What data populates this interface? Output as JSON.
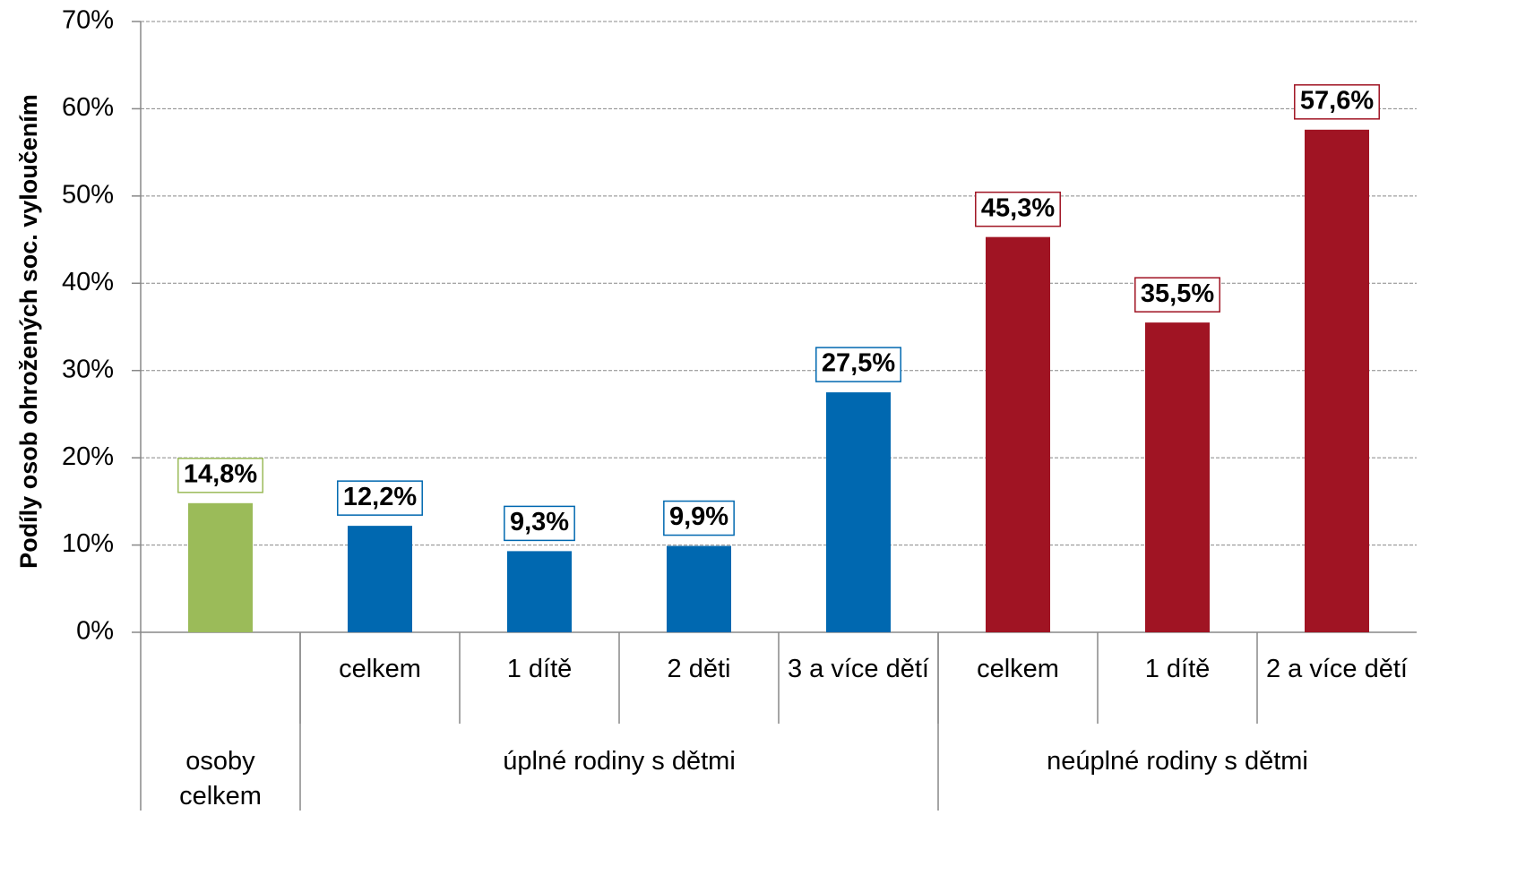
{
  "chart_data": {
    "type": "bar",
    "y_label": "Podíly osob ohrožených soc. vyloučením",
    "categories": [
      null,
      "celkem",
      "1 dítě",
      "2 děti",
      "3 a více dětí",
      "celkem",
      "1 dítě",
      "2 a více dětí"
    ],
    "groups": [
      {
        "label": "osoby celkem",
        "count": 1
      },
      {
        "label": "úplné rodiny s dětmi",
        "count": 4
      },
      {
        "label": "neúplné rodiny s dětmi",
        "count": 3
      }
    ],
    "values": [
      14.8,
      12.2,
      9.3,
      9.9,
      27.5,
      45.3,
      35.5,
      57.6
    ],
    "value_labels": [
      "14,8%",
      "12,2%",
      "9,3%",
      "9,9%",
      "27,5%",
      "45,3%",
      "35,5%",
      "57,6%"
    ],
    "colors": [
      "#9bbb59",
      "#0068b0",
      "#0068b0",
      "#0068b0",
      "#0068b0",
      "#a01423",
      "#a01423",
      "#a01423"
    ],
    "ylim": [
      0,
      70
    ],
    "yticks": [
      {
        "value": 0,
        "label": "0%"
      },
      {
        "value": 10,
        "label": "10%"
      },
      {
        "value": 20,
        "label": "20%"
      },
      {
        "value": 30,
        "label": "30%"
      },
      {
        "value": 40,
        "label": "40%"
      },
      {
        "value": 50,
        "label": "50%"
      },
      {
        "value": 60,
        "label": "60%"
      },
      {
        "value": 70,
        "label": "70%"
      }
    ],
    "grid": true
  }
}
